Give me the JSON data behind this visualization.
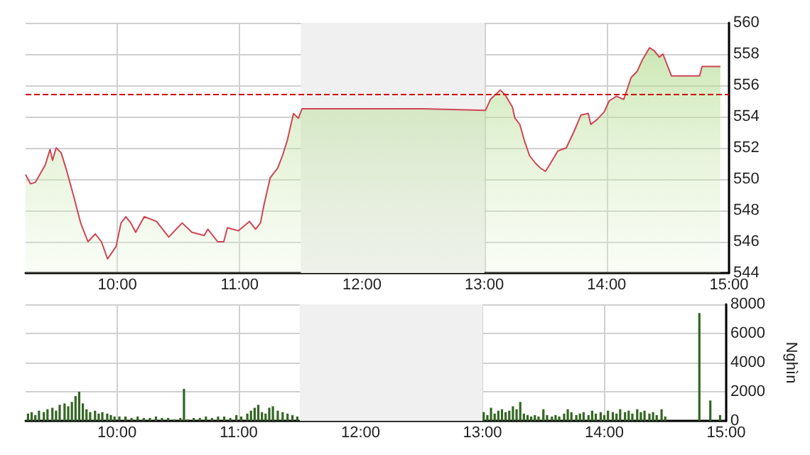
{
  "chart_data": [
    {
      "type": "area",
      "xlim": [
        9.25,
        15
      ],
      "ylim": [
        544,
        560
      ],
      "xticks": [
        {
          "value": 10,
          "label": "10:00"
        },
        {
          "value": 11,
          "label": "11:00"
        },
        {
          "value": 12,
          "label": "12:00"
        },
        {
          "value": 13,
          "label": "13:00"
        },
        {
          "value": 14,
          "label": "14:00"
        },
        {
          "value": 15,
          "label": "15:00"
        }
      ],
      "yticks": [
        544,
        546,
        548,
        550,
        552,
        554,
        556,
        558,
        560
      ],
      "grid": true,
      "marker": "none",
      "bands": [
        {
          "axis": "x",
          "from": 11.5,
          "to": 13,
          "color": "#f0f0f0"
        }
      ],
      "ref_lines": [
        {
          "axis": "y",
          "value": 555.4,
          "color": "#cc0000",
          "line_style": "dashed"
        }
      ],
      "series": [
        {
          "color": "#d04455",
          "x": [
            9.25,
            9.29,
            9.33,
            9.41,
            9.45,
            9.47,
            9.5,
            9.54,
            9.58,
            9.64,
            9.7,
            9.76,
            9.82,
            9.87,
            9.92,
            9.99,
            10.03,
            10.07,
            10.11,
            10.15,
            10.22,
            10.32,
            10.42,
            10.53,
            10.61,
            10.71,
            10.74,
            10.82,
            10.87,
            10.9,
            10.99,
            11.08,
            11.13,
            11.17,
            11.2,
            11.25,
            11.31,
            11.35,
            11.39,
            11.44,
            11.48,
            11.51,
            12.5,
            13.01,
            13.05,
            13.09,
            13.13,
            13.17,
            13.23,
            13.25,
            13.29,
            13.33,
            13.37,
            13.42,
            13.46,
            13.5,
            13.54,
            13.6,
            13.67,
            13.73,
            13.79,
            13.85,
            13.87,
            13.92,
            13.98,
            14.02,
            14.08,
            14.14,
            14.2,
            14.25,
            14.29,
            14.35,
            14.39,
            14.43,
            14.46,
            14.53,
            14.76,
            14.78,
            14.93
          ],
          "values": [
            550.3,
            549.7,
            549.8,
            550.9,
            551.9,
            551.2,
            552.0,
            551.7,
            550.7,
            549.0,
            547.2,
            546.0,
            546.5,
            546.0,
            544.9,
            545.7,
            547.2,
            547.6,
            547.2,
            546.6,
            547.6,
            547.3,
            546.3,
            547.2,
            546.6,
            546.4,
            546.8,
            546.0,
            546.0,
            546.9,
            546.7,
            547.3,
            546.8,
            547.2,
            548.4,
            550.1,
            550.7,
            551.5,
            552.5,
            554.2,
            553.9,
            554.5,
            554.5,
            554.4,
            555.1,
            555.4,
            555.7,
            555.4,
            554.6,
            553.9,
            553.5,
            552.4,
            551.5,
            551.0,
            550.7,
            550.5,
            551.0,
            551.8,
            552.0,
            553.0,
            554.1,
            554.2,
            553.5,
            553.8,
            554.3,
            555.0,
            555.3,
            555.1,
            556.5,
            556.9,
            557.6,
            558.4,
            558.2,
            557.8,
            558.0,
            556.6,
            556.6,
            557.2,
            557.2
          ]
        }
      ]
    },
    {
      "type": "bar",
      "xlim": [
        9.25,
        15
      ],
      "ylim": [
        0,
        8000
      ],
      "ylabel": "Nghìn",
      "xticks": [
        {
          "value": 10,
          "label": "10:00"
        },
        {
          "value": 11,
          "label": "11:00"
        },
        {
          "value": 12,
          "label": "12:00"
        },
        {
          "value": 13,
          "label": "13:00"
        },
        {
          "value": 14,
          "label": "14:00"
        },
        {
          "value": 15,
          "label": "15:00"
        }
      ],
      "yticks": [
        0,
        2000,
        4000,
        6000,
        8000
      ],
      "grid": true,
      "bands": [
        {
          "axis": "x",
          "from": 11.5,
          "to": 13,
          "color": "#f0f0f0"
        }
      ],
      "series": [
        {
          "color": "#336622",
          "x": [
            9.27,
            9.3,
            9.33,
            9.36,
            9.4,
            9.43,
            9.47,
            9.5,
            9.53,
            9.57,
            9.6,
            9.63,
            9.66,
            9.69,
            9.72,
            9.75,
            9.78,
            9.82,
            9.85,
            9.88,
            9.92,
            9.95,
            9.98,
            10.02,
            10.07,
            10.12,
            10.17,
            10.22,
            10.27,
            10.32,
            10.37,
            10.42,
            10.47,
            10.52,
            10.55,
            10.58,
            10.63,
            10.68,
            10.73,
            10.78,
            10.83,
            10.88,
            10.93,
            10.98,
            11.02,
            11.07,
            11.1,
            11.13,
            11.16,
            11.19,
            11.22,
            11.25,
            11.28,
            11.32,
            11.36,
            11.4,
            11.44,
            11.48,
            13.01,
            13.04,
            13.07,
            13.1,
            13.13,
            13.16,
            13.19,
            13.22,
            13.25,
            13.28,
            13.31,
            13.34,
            13.37,
            13.4,
            13.43,
            13.46,
            13.5,
            13.53,
            13.57,
            13.6,
            13.63,
            13.67,
            13.7,
            13.73,
            13.77,
            13.8,
            13.83,
            13.87,
            13.9,
            13.93,
            13.97,
            14.0,
            14.03,
            14.07,
            14.1,
            14.13,
            14.17,
            14.2,
            14.23,
            14.27,
            14.3,
            14.33,
            14.37,
            14.4,
            14.43,
            14.47,
            14.5,
            14.78,
            14.87,
            14.95
          ],
          "values": [
            500,
            600,
            400,
            700,
            600,
            800,
            900,
            700,
            1100,
            1200,
            1000,
            1300,
            1700,
            2000,
            1200,
            800,
            600,
            700,
            500,
            600,
            500,
            400,
            300,
            300,
            300,
            200,
            300,
            200,
            200,
            300,
            200,
            200,
            100,
            200,
            2200,
            100,
            200,
            200,
            300,
            200,
            300,
            300,
            200,
            400,
            300,
            500,
            700,
            900,
            1100,
            600,
            500,
            900,
            1000,
            700,
            600,
            500,
            400,
            300,
            600,
            400,
            900,
            500,
            700,
            800,
            600,
            700,
            1000,
            800,
            1300,
            500,
            400,
            300,
            400,
            300,
            800,
            400,
            300,
            400,
            300,
            500,
            800,
            600,
            400,
            500,
            600,
            400,
            700,
            500,
            600,
            400,
            700,
            600,
            500,
            800,
            600,
            700,
            500,
            800,
            600,
            700,
            500,
            600,
            400,
            800,
            300,
            7400,
            1400,
            400
          ]
        }
      ]
    }
  ]
}
